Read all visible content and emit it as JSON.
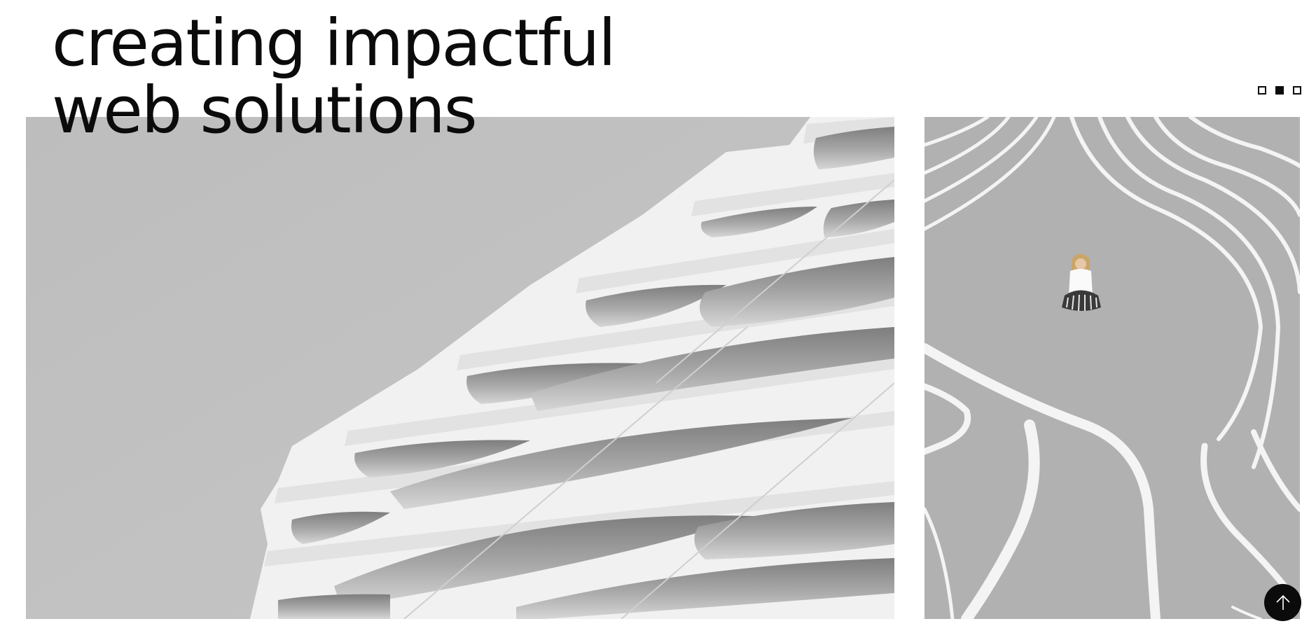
{
  "hero": {
    "title_line1": "creating impactful",
    "title_line2": "web solutions"
  },
  "slider": {
    "dots": [
      {
        "state": "inactive"
      },
      {
        "state": "active"
      },
      {
        "state": "inactive"
      }
    ],
    "active_index": 1
  },
  "images": {
    "left": {
      "subject": "white wavy architectural facade on grey sky",
      "icon": "facade-image"
    },
    "right": {
      "subject": "person sitting among curving white painted lines",
      "icon": "lines-image"
    }
  },
  "scroll_top": {
    "icon": "arrow-up-icon"
  },
  "colors": {
    "text": "#0b0b0b",
    "background": "#ffffff",
    "sky_grey": "#bfbfbf",
    "ground_grey": "#b0b0b0",
    "facade_white": "#f3f3f3"
  }
}
